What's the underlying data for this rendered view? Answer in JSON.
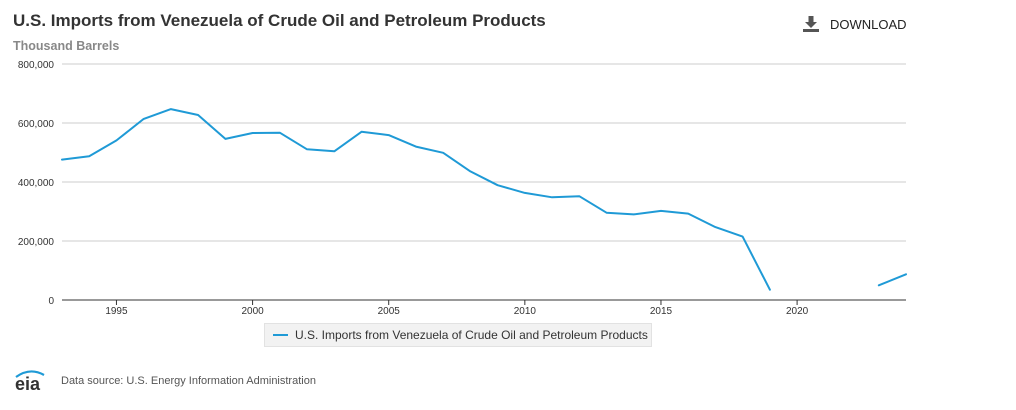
{
  "header": {
    "title": "U.S. Imports from Venezuela of Crude Oil and Petroleum Products",
    "subtitle": "Thousand Barrels",
    "download_label": "DOWNLOAD"
  },
  "footer": {
    "logo_text": "eia",
    "source": "Data source: U.S. Energy Information Administration"
  },
  "colors": {
    "series": "#1f9ad6",
    "grid": "#cccccc"
  },
  "chart_data": {
    "type": "line",
    "title": "U.S. Imports from Venezuela of Crude Oil and Petroleum Products",
    "ylabel": "Thousand Barrels",
    "xlabel": "",
    "xlim": [
      1993,
      2024
    ],
    "ylim": [
      0,
      800000
    ],
    "x_ticks": [
      1995,
      2000,
      2005,
      2010,
      2015,
      2020
    ],
    "y_ticks": [
      0,
      200000,
      400000,
      600000,
      800000
    ],
    "y_tick_labels": [
      "0",
      "200,000",
      "400,000",
      "600,000",
      "800,000"
    ],
    "legend": "bottom-center",
    "series": [
      {
        "name": "U.S. Imports from Venezuela of Crude Oil and Petroleum Products",
        "x": [
          1993,
          1994,
          1995,
          1996,
          1997,
          1998,
          1999,
          2000,
          2001,
          2002,
          2003,
          2004,
          2005,
          2006,
          2007,
          2008,
          2009,
          2010,
          2011,
          2012,
          2013,
          2014,
          2015,
          2016,
          2017,
          2018,
          2019,
          2020,
          2021,
          2022,
          2023,
          2024
        ],
        "values": [
          476000,
          487000,
          541000,
          614000,
          647000,
          627000,
          546000,
          566000,
          567000,
          511000,
          504000,
          570000,
          559000,
          520000,
          499000,
          436000,
          389000,
          363000,
          348000,
          352000,
          296000,
          290000,
          302000,
          293000,
          247000,
          215000,
          35000,
          null,
          null,
          null,
          50000,
          87000
        ]
      }
    ]
  }
}
